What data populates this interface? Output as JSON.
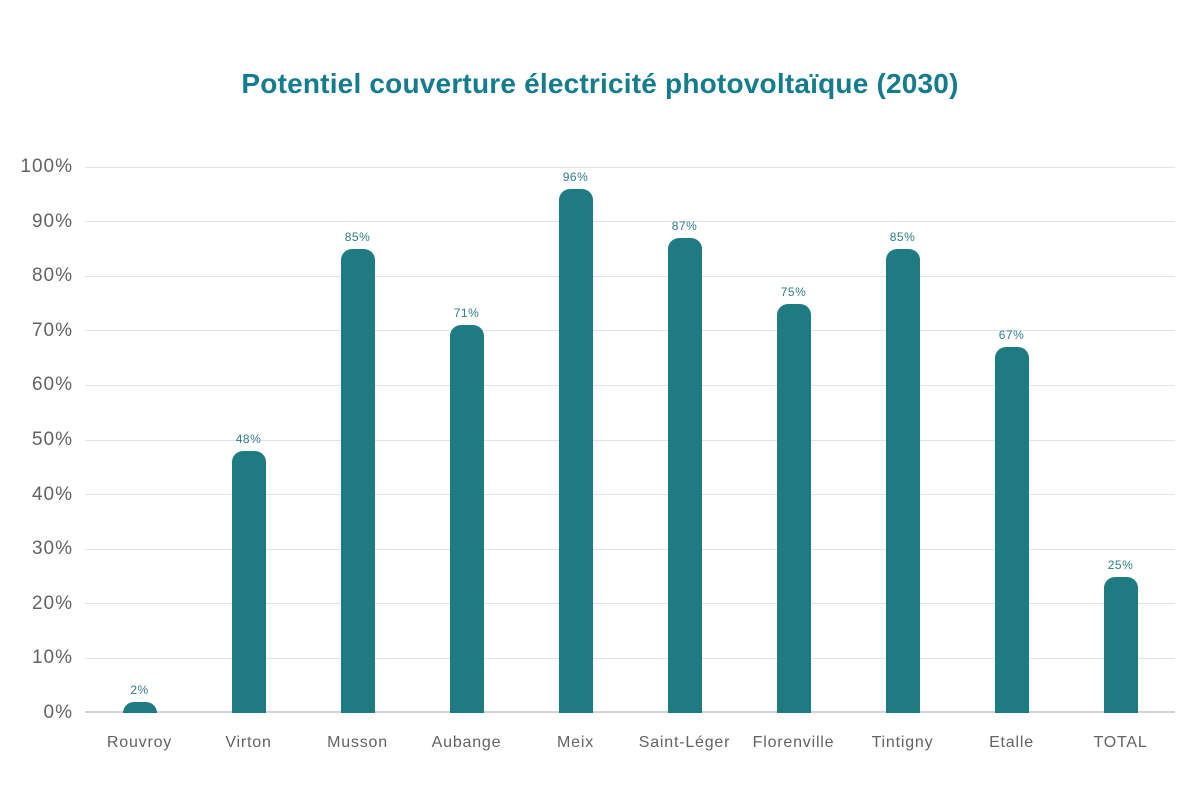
{
  "title": "Potentiel couverture électricité photovoltaïque (2030)",
  "colors": {
    "background": "#ffffff",
    "title": "#147c8d",
    "bar": "#1f7b82",
    "value_label": "#2e7d89",
    "axis_text": "#636363",
    "gridline": "#e4e4e4",
    "axis_line": "#d4d4d4"
  },
  "chart_data": {
    "type": "bar",
    "title": "Potentiel couverture électricité photovoltaïque (2030)",
    "categories": [
      "Rouvroy",
      "Virton",
      "Musson",
      "Aubange",
      "Meix",
      "Saint-Léger",
      "Florenville",
      "Tintigny",
      "Etalle",
      "TOTAL"
    ],
    "values": [
      2,
      48,
      85,
      71,
      96,
      87,
      75,
      85,
      67,
      25
    ],
    "value_labels": [
      "2%",
      "48%",
      "85%",
      "71%",
      "96%",
      "87%",
      "75%",
      "85%",
      "67%",
      "25%"
    ],
    "yticks": [
      "0%",
      "10%",
      "20%",
      "30%",
      "40%",
      "50%",
      "60%",
      "70%",
      "80%",
      "90%",
      "100%"
    ],
    "xlabel": "",
    "ylabel": "",
    "ylim": [
      0,
      100
    ],
    "ytick_step": 10,
    "grid": "horizontal",
    "legend": "none",
    "bar_corner": "rounded-top"
  }
}
